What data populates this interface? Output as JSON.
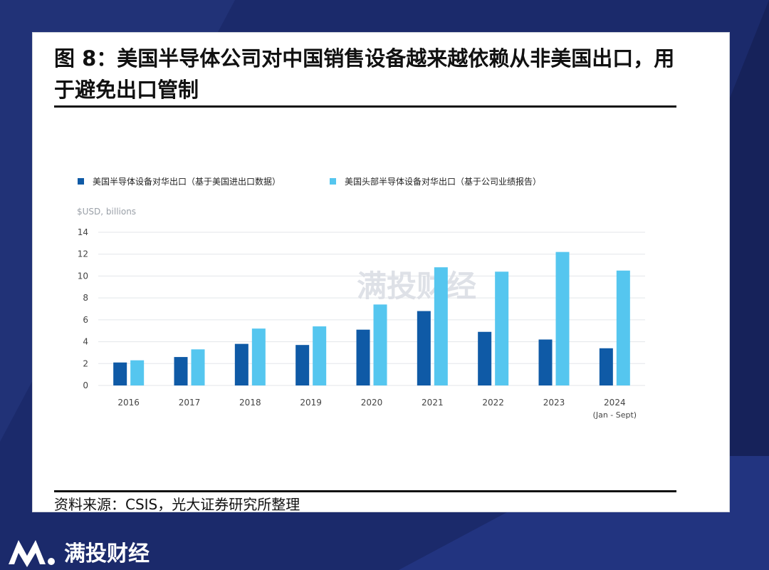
{
  "title": "图 8：美国半导体公司对中国销售设备越来越依赖从非美国出口，用于避免出口管制",
  "source": "资料来源：CSIS，光大证券研究所整理",
  "watermark": "满投财经",
  "brand": "满投财经",
  "colors": {
    "background": "#1b2a6b",
    "series1": "#0f5aa6",
    "series2": "#55c6ef"
  },
  "chart_data": {
    "type": "bar",
    "unit_label": "$USD, billions",
    "categories": [
      "2016",
      "2017",
      "2018",
      "2019",
      "2020",
      "2021",
      "2022",
      "2023",
      "2024"
    ],
    "category_sublabels": [
      "",
      "",
      "",
      "",
      "",
      "",
      "",
      "",
      "(Jan - Sept)"
    ],
    "series": [
      {
        "name": "美国半导体设备对华出口（基于美国进出口数据）",
        "color": "#0f5aa6",
        "values": [
          2.1,
          2.6,
          3.8,
          3.7,
          5.1,
          6.8,
          4.9,
          4.2,
          3.4
        ]
      },
      {
        "name": "美国头部半导体设备对华出口（基于公司业绩报告）",
        "color": "#55c6ef",
        "values": [
          2.3,
          3.3,
          5.2,
          5.4,
          7.4,
          10.8,
          10.4,
          12.2,
          10.5
        ]
      }
    ],
    "ylim": [
      0,
      14
    ],
    "yticks": [
      0,
      2,
      4,
      6,
      8,
      10,
      12,
      14
    ],
    "grid": true,
    "legend_position": "top-left"
  }
}
